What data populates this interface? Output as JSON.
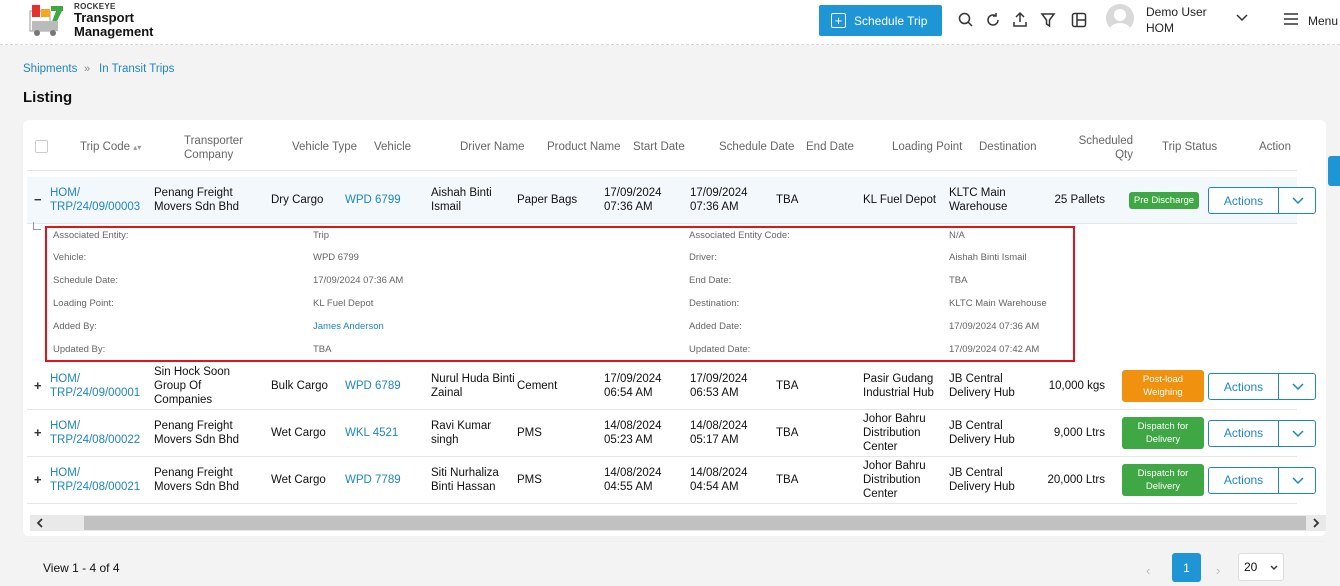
{
  "app": {
    "brand_small": "ROCKEYE",
    "brand_line1": "Transport",
    "brand_line2": "Management"
  },
  "topbar": {
    "schedule_label": "Schedule Trip",
    "user_name": "Demo User",
    "user_org": "HOM",
    "menu_label": "Menu",
    "icons": [
      "search-icon",
      "refresh-icon",
      "upload-icon",
      "filter-icon",
      "columns-icon",
      "chevron-down-icon",
      "hamburger-icon"
    ]
  },
  "breadcrumb": [
    "Shipments",
    "In Transit Trips"
  ],
  "page_title": "Listing",
  "table": {
    "headers": {
      "trip_code": "Trip Code",
      "transporter_1": "Transporter",
      "transporter_2": "Company",
      "vehicle_type": "Vehicle Type",
      "vehicle": "Vehicle",
      "driver": "Driver Name",
      "product": "Product Name",
      "start": "Start Date",
      "schedule": "Schedule Date",
      "end": "End Date",
      "loading": "Loading Point",
      "destination": "Destination",
      "qty_1": "Scheduled",
      "qty_2": "Qty",
      "status": "Trip Status",
      "action": "Action"
    },
    "rows": [
      {
        "toggle": "−",
        "code_1": "HOM/",
        "code_2": "TRP/24/09/00003",
        "transporter_1": "Penang Freight",
        "transporter_2": "Movers Sdn Bhd",
        "transporter_3": "",
        "vehicle_type": "Dry Cargo",
        "vehicle": "WPD 6799",
        "driver_1": "Aishah Binti",
        "driver_2": "Ismail",
        "product": "Paper Bags",
        "start_1": "17/09/2024",
        "start_2": "07:36 AM",
        "sched_1": "17/09/2024",
        "sched_2": "07:36 AM",
        "end": "TBA",
        "loading_1": "KL Fuel Depot",
        "loading_2": "",
        "loading_3": "",
        "dest_1": "KLTC Main",
        "dest_2": "Warehouse",
        "qty": "25 Pallets",
        "status_1": "Pre Discharge",
        "status_2": "",
        "status_color": "#3fa845",
        "action": "Actions"
      },
      {
        "toggle": "+",
        "code_1": "HOM/",
        "code_2": "TRP/24/09/00001",
        "transporter_1": "Sin Hock Soon",
        "transporter_2": "Group Of",
        "transporter_3": "Companies",
        "vehicle_type": "Bulk Cargo",
        "vehicle": "WPD 6789",
        "driver_1": "Nurul Huda Binti",
        "driver_2": "Zainal",
        "product": "Cement",
        "start_1": "17/09/2024",
        "start_2": "06:54 AM",
        "sched_1": "17/09/2024",
        "sched_2": "06:53 AM",
        "end": "TBA",
        "loading_1": "Pasir Gudang",
        "loading_2": "Industrial Hub",
        "loading_3": "",
        "dest_1": "JB Central",
        "dest_2": "Delivery Hub",
        "qty": "10,000 kgs",
        "status_1": "Post-load",
        "status_2": "Weighing",
        "status_color": "#f0920f",
        "action": "Actions"
      },
      {
        "toggle": "+",
        "code_1": "HOM/",
        "code_2": "TRP/24/08/00022",
        "transporter_1": "Penang Freight",
        "transporter_2": "Movers Sdn Bhd",
        "transporter_3": "",
        "vehicle_type": "Wet Cargo",
        "vehicle": "WKL 4521",
        "driver_1": "Ravi Kumar",
        "driver_2": "singh",
        "product": "PMS",
        "start_1": "14/08/2024",
        "start_2": "05:23 AM",
        "sched_1": "14/08/2024",
        "sched_2": "05:17 AM",
        "end": "TBA",
        "loading_1": "Johor Bahru",
        "loading_2": "Distribution",
        "loading_3": "Center",
        "dest_1": "JB Central",
        "dest_2": "Delivery Hub",
        "qty": "9,000 Ltrs",
        "status_1": "Dispatch for",
        "status_2": "Delivery",
        "status_color": "#3fa845",
        "action": "Actions"
      },
      {
        "toggle": "+",
        "code_1": "HOM/",
        "code_2": "TRP/24/08/00021",
        "transporter_1": "Penang Freight",
        "transporter_2": "Movers Sdn Bhd",
        "transporter_3": "",
        "vehicle_type": "Wet Cargo",
        "vehicle": "WPD 7789",
        "driver_1": "Siti Nurhaliza",
        "driver_2": "Binti Hassan",
        "product": "PMS",
        "start_1": "14/08/2024",
        "start_2": "04:55 AM",
        "sched_1": "14/08/2024",
        "sched_2": "04:54 AM",
        "end": "TBA",
        "loading_1": "Johor Bahru",
        "loading_2": "Distribution",
        "loading_3": "Center",
        "dest_1": "JB Central",
        "dest_2": "Delivery Hub",
        "qty": "20,000 Ltrs",
        "status_1": "Dispatch for",
        "status_2": "Delivery",
        "status_color": "#3fa845",
        "action": "Actions"
      }
    ]
  },
  "detail": [
    {
      "label": "Associated Entity:",
      "value": "Trip",
      "label2": "Associated Entity Code:",
      "value2": "N/A"
    },
    {
      "label": "Vehicle:",
      "value": "WPD 6799",
      "label2": "Driver:",
      "value2": "Aishah Binti Ismail"
    },
    {
      "label": "Schedule Date:",
      "value": "17/09/2024 07:36 AM",
      "label2": "End Date:",
      "value2": "TBA"
    },
    {
      "label": "Loading Point:",
      "value": "KL Fuel Depot",
      "label2": "Destination:",
      "value2": "KLTC Main Warehouse"
    },
    {
      "label": "Added By:",
      "value": "James Anderson",
      "label2": "Added Date:",
      "value2": "17/09/2024 07:36 AM"
    },
    {
      "label": "Updated By:",
      "value": "TBA",
      "label2": "Updated Date:",
      "value2": "17/09/2024 07:42 AM"
    }
  ],
  "footer": {
    "view_text": "View 1 - 4 of 4",
    "current_page": "1",
    "page_size": "20"
  },
  "colors": {
    "accent": "#1e96d6",
    "link": "#1e86c6",
    "highlight_border": "#e0141b",
    "status_green": "#3fa845",
    "status_orange": "#f0920f"
  }
}
